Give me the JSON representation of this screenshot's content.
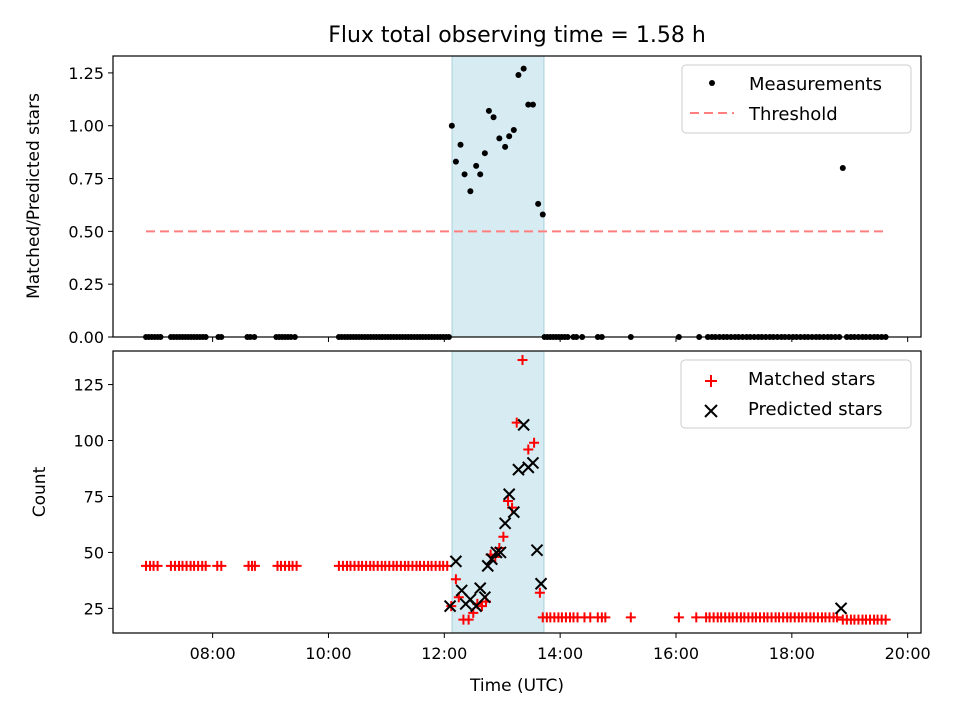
{
  "chart_data": {
    "title": "Flux total observing time = 1.58 h",
    "xlabel": "Time (UTC)",
    "x_ticks": [
      "08:00",
      "10:00",
      "12:00",
      "14:00",
      "16:00",
      "18:00",
      "20:00"
    ],
    "xlim_hours": [
      6.28,
      20.23
    ],
    "shaded_interval_hours": [
      12.1,
      13.68
    ],
    "panels": [
      {
        "type": "scatter",
        "ylabel": "Matched/Predicted stars",
        "ylim": [
          0,
          1.33
        ],
        "y_ticks": [
          "0.00",
          "0.25",
          "0.50",
          "0.75",
          "1.00",
          "1.25"
        ],
        "legend_position": "top-right",
        "threshold": {
          "name": "Threshold",
          "value": 0.5,
          "x_range": [
            6.85,
            19.65
          ],
          "color": "#ff7f7f"
        },
        "series": [
          {
            "name": "Measurements",
            "color": "#000000",
            "marker": "dot",
            "x": [
              6.85,
              6.9,
              6.95,
              7.0,
              7.05,
              7.1,
              7.28,
              7.33,
              7.38,
              7.43,
              7.48,
              7.53,
              7.58,
              7.63,
              7.68,
              7.73,
              7.78,
              7.83,
              7.88,
              8.1,
              8.15,
              8.6,
              8.65,
              8.72,
              9.1,
              9.15,
              9.2,
              9.25,
              9.3,
              9.35,
              9.42,
              10.18,
              10.23,
              10.28,
              10.33,
              10.38,
              10.43,
              10.48,
              10.53,
              10.58,
              10.63,
              10.68,
              10.73,
              10.78,
              10.83,
              10.88,
              10.93,
              10.98,
              11.03,
              11.08,
              11.13,
              11.18,
              11.23,
              11.28,
              11.33,
              11.38,
              11.43,
              11.48,
              11.53,
              11.58,
              11.63,
              11.68,
              11.73,
              11.78,
              11.83,
              11.88,
              11.93,
              11.98,
              12.03,
              12.08,
              12.13,
              12.2,
              12.28,
              12.35,
              12.45,
              12.55,
              12.62,
              12.7,
              12.77,
              12.85,
              12.95,
              13.05,
              13.12,
              13.2,
              13.28,
              13.37,
              13.45,
              13.53,
              13.62,
              13.7,
              13.73,
              13.78,
              13.83,
              13.88,
              13.93,
              13.98,
              14.03,
              14.08,
              14.13,
              14.23,
              14.28,
              14.38,
              14.65,
              14.72,
              15.22,
              16.05,
              16.4,
              16.55,
              16.62,
              16.68,
              16.75,
              16.82,
              16.88,
              16.95,
              17.02,
              17.08,
              17.15,
              17.22,
              17.28,
              17.35,
              17.42,
              17.48,
              17.55,
              17.62,
              17.68,
              17.75,
              17.82,
              17.88,
              17.95,
              18.02,
              18.08,
              18.15,
              18.22,
              18.28,
              18.35,
              18.42,
              18.48,
              18.55,
              18.62,
              18.68,
              18.75,
              18.82,
              18.88,
              18.95,
              19.02,
              19.08,
              19.15,
              19.22,
              19.28,
              19.35,
              19.42,
              19.48,
              19.55,
              19.62
            ],
            "y": [
              0,
              0,
              0,
              0,
              0,
              0,
              0,
              0,
              0,
              0,
              0,
              0,
              0,
              0,
              0,
              0,
              0,
              0,
              0,
              0,
              0,
              0,
              0,
              0,
              0,
              0,
              0,
              0,
              0,
              0,
              0,
              0,
              0,
              0,
              0,
              0,
              0,
              0,
              0,
              0,
              0,
              0,
              0,
              0,
              0,
              0,
              0,
              0,
              0,
              0,
              0,
              0,
              0,
              0,
              0,
              0,
              0,
              0,
              0,
              0,
              0,
              0,
              0,
              0,
              0,
              0,
              0,
              0,
              0,
              0,
              1.0,
              0.83,
              0.91,
              0.77,
              0.69,
              0.81,
              0.77,
              0.87,
              1.07,
              1.04,
              0.94,
              0.9,
              0.95,
              0.98,
              1.24,
              1.27,
              1.1,
              1.1,
              0.63,
              0.58,
              0,
              0,
              0,
              0,
              0,
              0,
              0,
              0,
              0,
              0,
              0,
              0,
              0,
              0,
              0,
              0,
              0,
              0,
              0,
              0,
              0,
              0,
              0,
              0,
              0,
              0,
              0,
              0,
              0,
              0,
              0,
              0,
              0,
              0,
              0,
              0,
              0,
              0,
              0,
              0,
              0,
              0,
              0,
              0,
              0,
              0,
              0,
              0,
              0,
              0,
              0,
              0,
              0.8,
              0,
              0,
              0,
              0,
              0,
              0,
              0,
              0,
              0,
              0,
              0
            ]
          }
        ]
      },
      {
        "type": "scatter",
        "ylabel": "Count",
        "ylim": [
          14,
          140
        ],
        "y_ticks": [
          "25",
          "50",
          "75",
          "100",
          "125"
        ],
        "legend_position": "top-right",
        "series": [
          {
            "name": "Matched stars",
            "color": "#ff0000",
            "marker": "plus",
            "x": [
              6.85,
              6.92,
              6.98,
              7.05,
              7.28,
              7.35,
              7.42,
              7.48,
              7.55,
              7.62,
              7.68,
              7.75,
              7.82,
              7.88,
              8.08,
              8.15,
              8.62,
              8.68,
              8.73,
              9.12,
              9.18,
              9.25,
              9.32,
              9.38,
              9.45,
              10.18,
              10.25,
              10.32,
              10.38,
              10.45,
              10.52,
              10.58,
              10.65,
              10.72,
              10.78,
              10.85,
              10.92,
              10.98,
              11.05,
              11.12,
              11.18,
              11.25,
              11.32,
              11.38,
              11.45,
              11.52,
              11.58,
              11.65,
              11.72,
              11.78,
              11.85,
              11.92,
              11.98,
              12.05,
              12.12,
              12.2,
              12.25,
              12.33,
              12.42,
              12.5,
              12.57,
              12.65,
              12.72,
              12.8,
              12.88,
              12.95,
              13.02,
              13.1,
              13.17,
              13.25,
              13.35,
              13.45,
              13.55,
              13.65,
              13.7,
              13.77,
              13.83,
              13.9,
              13.97,
              14.03,
              14.1,
              14.17,
              14.23,
              14.3,
              14.42,
              14.52,
              14.65,
              14.72,
              14.78,
              15.22,
              16.05,
              16.35,
              16.52,
              16.58,
              16.65,
              16.72,
              16.78,
              16.85,
              16.92,
              16.98,
              17.05,
              17.12,
              17.18,
              17.25,
              17.32,
              17.38,
              17.45,
              17.52,
              17.58,
              17.65,
              17.72,
              17.78,
              17.85,
              17.92,
              17.98,
              18.05,
              18.12,
              18.18,
              18.25,
              18.32,
              18.38,
              18.45,
              18.52,
              18.58,
              18.65,
              18.72,
              18.78,
              18.88,
              18.95,
              19.02,
              19.08,
              19.15,
              19.22,
              19.28,
              19.35,
              19.42,
              19.48,
              19.55,
              19.62
            ],
            "y": [
              44,
              44,
              44,
              44,
              44,
              44,
              44,
              44,
              44,
              44,
              44,
              44,
              44,
              44,
              44,
              44,
              44,
              44,
              44,
              44,
              44,
              44,
              44,
              44,
              44,
              44,
              44,
              44,
              44,
              44,
              44,
              44,
              44,
              44,
              44,
              44,
              44,
              44,
              44,
              44,
              44,
              44,
              44,
              44,
              44,
              44,
              44,
              44,
              44,
              44,
              44,
              44,
              44,
              44,
              26,
              38,
              30,
              20,
              20,
              23,
              27,
              26,
              28,
              49,
              48,
              52,
              57,
              73,
              70,
              108,
              136,
              96,
              99,
              32,
              21,
              21,
              21,
              21,
              21,
              21,
              21,
              21,
              21,
              21,
              21,
              21,
              21,
              21,
              21,
              21,
              21,
              21,
              21,
              21,
              21,
              21,
              21,
              21,
              21,
              21,
              21,
              21,
              21,
              21,
              21,
              21,
              21,
              21,
              21,
              21,
              21,
              21,
              21,
              21,
              21,
              21,
              21,
              21,
              21,
              21,
              21,
              21,
              21,
              21,
              21,
              21,
              21,
              20,
              20,
              20,
              20,
              20,
              20,
              20,
              20,
              20,
              20,
              20,
              20
            ]
          },
          {
            "name": "Predicted stars",
            "color": "#000000",
            "marker": "x",
            "x": [
              12.1,
              12.2,
              12.3,
              12.37,
              12.45,
              12.55,
              12.62,
              12.7,
              12.75,
              12.82,
              12.9,
              12.97,
              13.05,
              13.12,
              13.2,
              13.28,
              13.37,
              13.45,
              13.53,
              13.6,
              13.67,
              18.85
            ],
            "y": [
              26,
              46,
              33,
              27,
              29,
              26,
              34,
              30,
              44,
              47,
              50,
              50,
              63,
              76,
              68,
              87,
              107,
              88,
              90,
              51,
              36,
              25
            ]
          }
        ]
      }
    ]
  }
}
